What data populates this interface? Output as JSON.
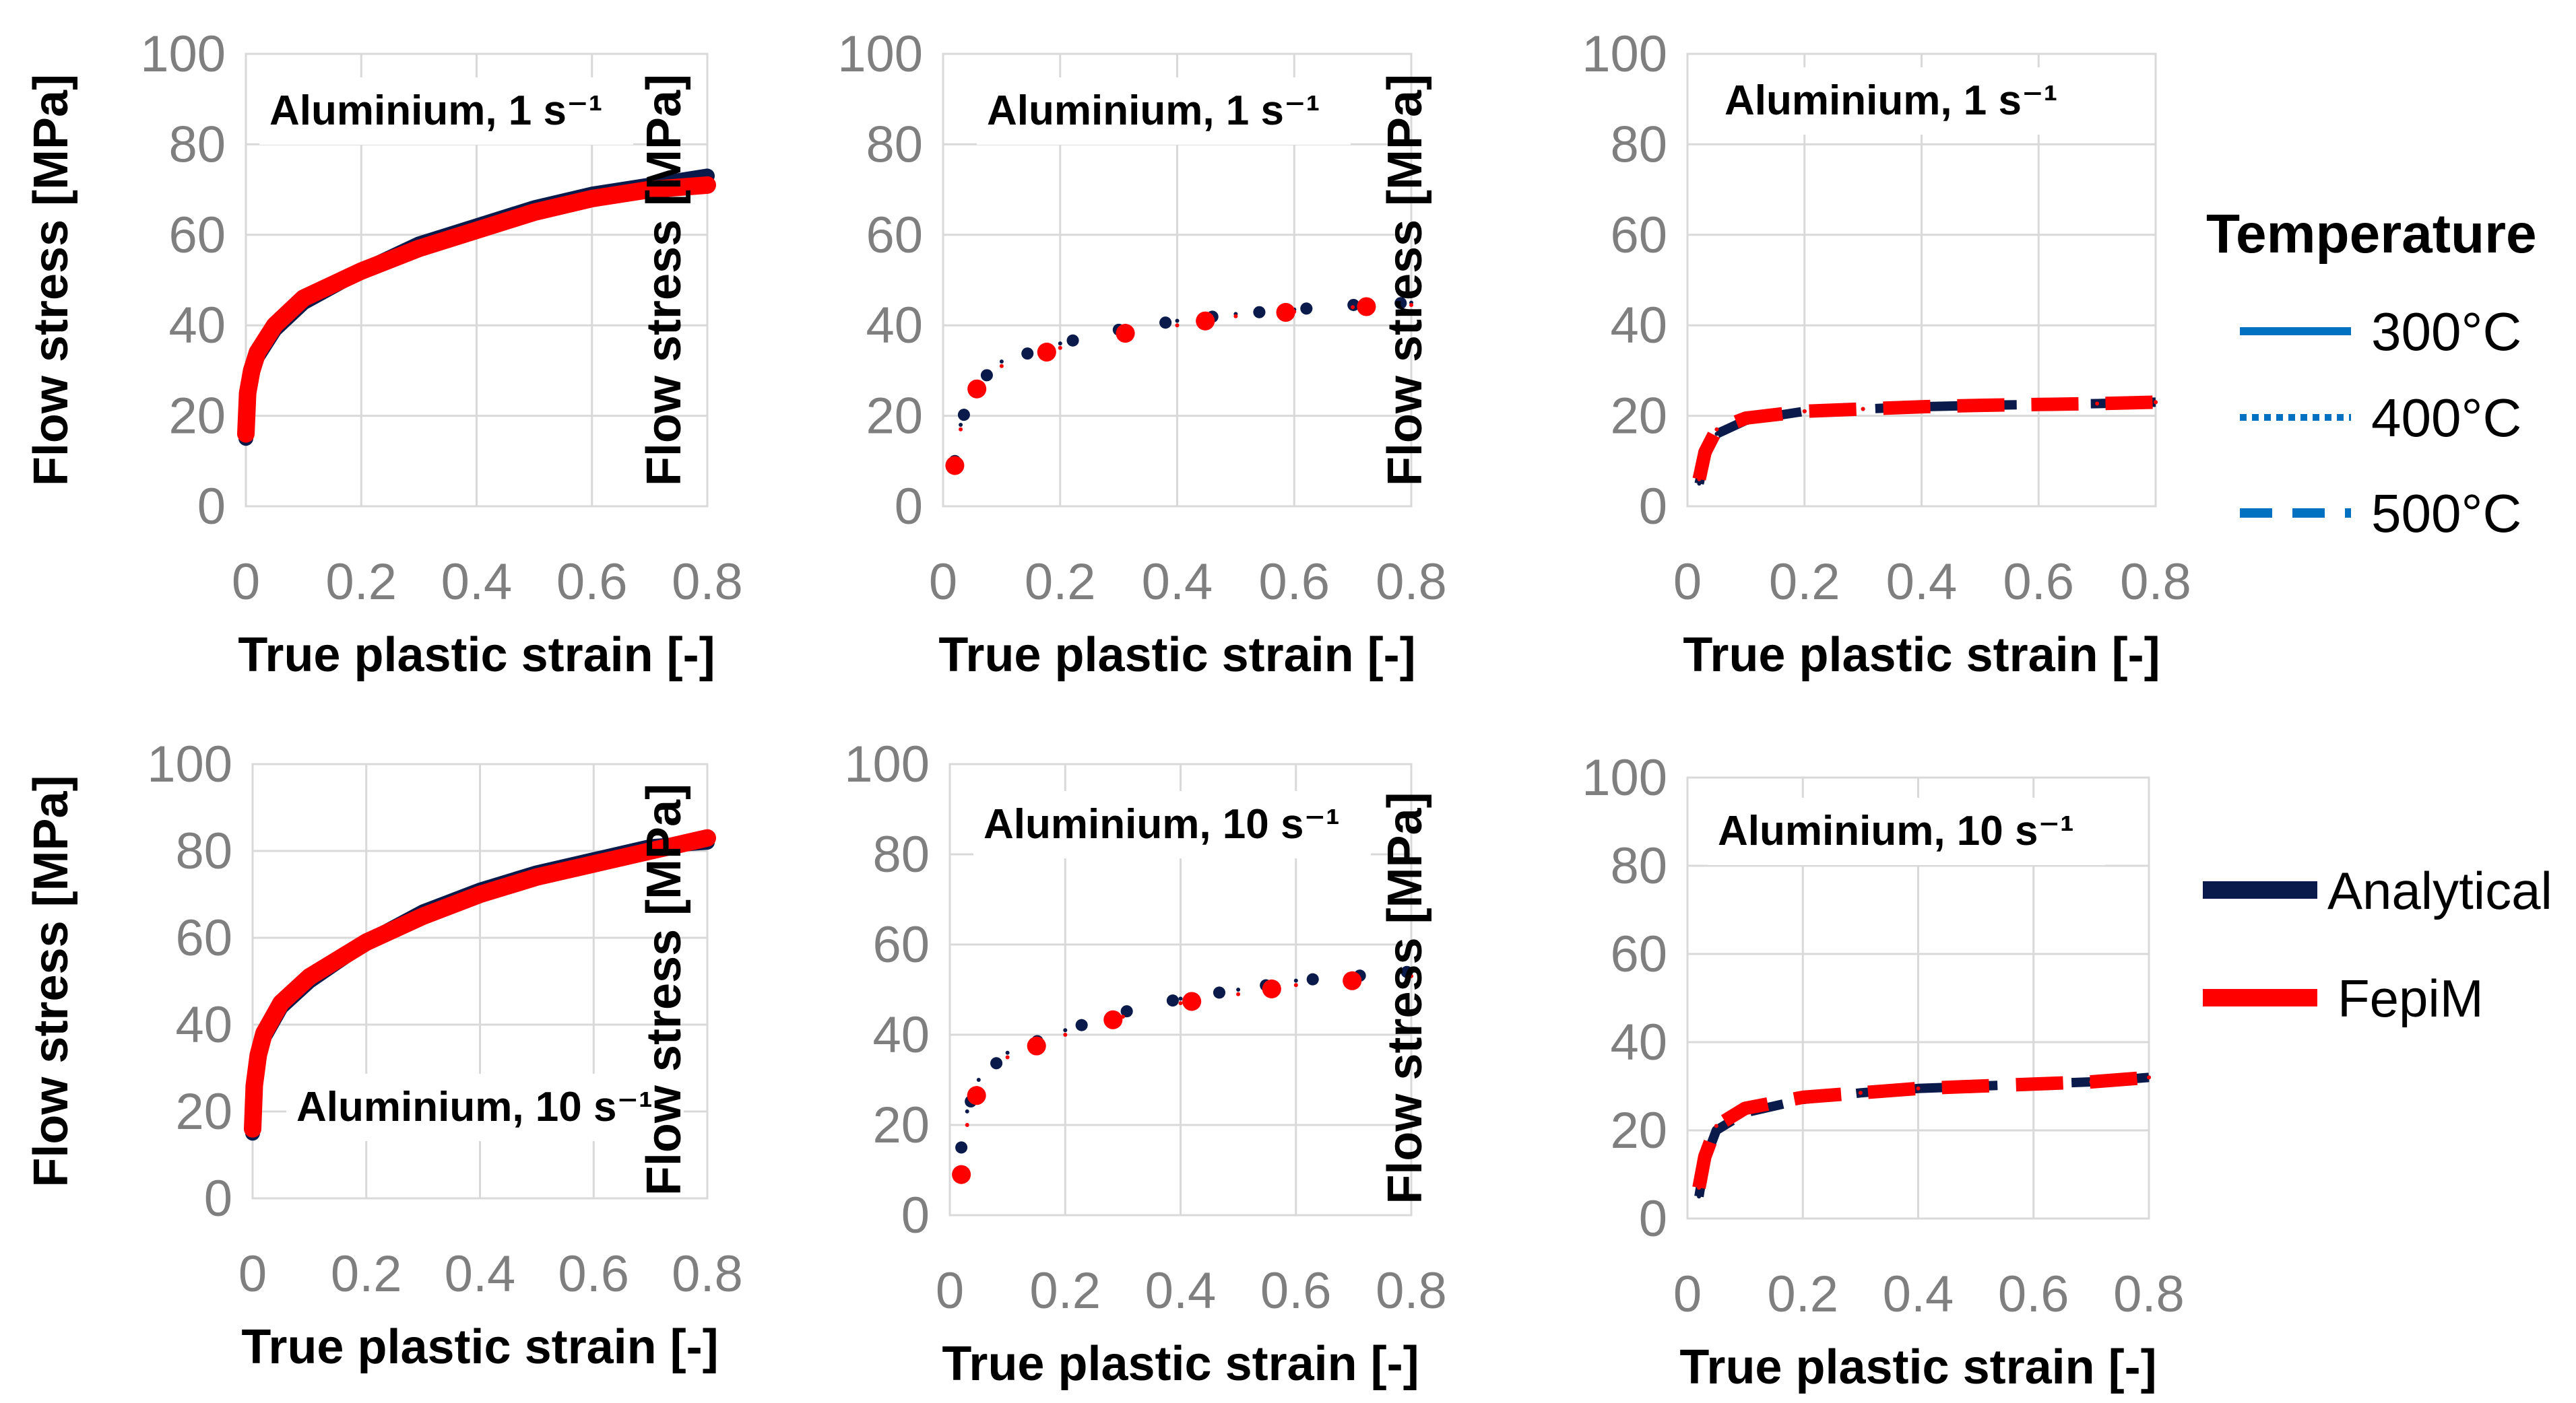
{
  "colors": {
    "analytical": "#0a1a4a",
    "fepim": "#ff0000",
    "temperature_legend": "#0070c0",
    "tick_text": "#7f7f7f",
    "grid": "#d9d9d9"
  },
  "legend": {
    "temperature_title": "Temperature",
    "temperature_items": [
      {
        "label": "300°C",
        "style": "solid"
      },
      {
        "label": "400°C",
        "style": "dotted"
      },
      {
        "label": "500°C",
        "style": "dashed"
      }
    ],
    "model_items": [
      {
        "label": "Analytical",
        "color": "#0a1a4a"
      },
      {
        "label": "FepiM",
        "color": "#ff0000"
      }
    ]
  },
  "chart_data": [
    {
      "type": "line",
      "title": "Aluminium, 1 s⁻¹",
      "temperature": "300°C",
      "line_style": "solid",
      "xlabel": "True plastic strain [-]",
      "ylabel": "Flow stress [MPa]",
      "xlim": [
        0,
        0.8
      ],
      "ylim": [
        0,
        100
      ],
      "xticks": [
        "0",
        "0.2",
        "0.4",
        "0.6",
        "0.8"
      ],
      "yticks": [
        "0",
        "20",
        "40",
        "60",
        "80",
        "100"
      ],
      "series": [
        {
          "name": "Analytical",
          "x": [
            0,
            0.003,
            0.01,
            0.02,
            0.05,
            0.1,
            0.2,
            0.3,
            0.4,
            0.5,
            0.6,
            0.7,
            0.8
          ],
          "y": [
            15,
            24,
            29,
            33,
            39,
            45,
            52,
            58,
            62,
            66,
            69,
            71,
            73
          ]
        },
        {
          "name": "FepiM",
          "x": [
            0,
            0.003,
            0.01,
            0.02,
            0.05,
            0.1,
            0.2,
            0.3,
            0.4,
            0.5,
            0.6,
            0.7,
            0.8
          ],
          "y": [
            16,
            25,
            30,
            34,
            40,
            46,
            52,
            57,
            61,
            65,
            68,
            70,
            71
          ]
        }
      ]
    },
    {
      "type": "line",
      "title": "Aluminium, 1 s⁻¹",
      "temperature": "400°C",
      "line_style": "dotted",
      "xlabel": "True plastic strain [-]",
      "ylabel": "Flow stress [MPa]",
      "xlim": [
        0,
        0.8
      ],
      "ylim": [
        0,
        100
      ],
      "xticks": [
        "0",
        "0.2",
        "0.4",
        "0.6",
        "0.8"
      ],
      "yticks": [
        "0",
        "20",
        "40",
        "60",
        "80",
        "100"
      ],
      "series": [
        {
          "name": "Analytical",
          "x": [
            0.02,
            0.03,
            0.05,
            0.1,
            0.2,
            0.3,
            0.4,
            0.5,
            0.6,
            0.7,
            0.8
          ],
          "y": [
            10,
            18,
            26,
            32,
            36,
            39,
            41,
            42.5,
            43.5,
            44.5,
            45
          ]
        },
        {
          "name": "FepiM",
          "x": [
            0.02,
            0.03,
            0.05,
            0.1,
            0.2,
            0.3,
            0.4,
            0.5,
            0.6,
            0.7,
            0.8
          ],
          "y": [
            9,
            17,
            25,
            31,
            35,
            38,
            40,
            42,
            43,
            44,
            44.5
          ]
        }
      ]
    },
    {
      "type": "line",
      "title": "Aluminium, 1 s⁻¹",
      "temperature": "500°C",
      "line_style": "dashed",
      "xlabel": "True plastic strain [-]",
      "ylabel": "Flow stress [MPa]",
      "xlim": [
        0,
        0.8
      ],
      "ylim": [
        0,
        100
      ],
      "xticks": [
        "0",
        "0.2",
        "0.4",
        "0.6",
        "0.8"
      ],
      "yticks": [
        "0",
        "20",
        "40",
        "60",
        "80",
        "100"
      ],
      "series": [
        {
          "name": "Analytical",
          "x": [
            0.02,
            0.03,
            0.05,
            0.1,
            0.2,
            0.3,
            0.4,
            0.5,
            0.6,
            0.7,
            0.8
          ],
          "y": [
            5,
            11,
            16,
            19,
            21,
            21.5,
            22,
            22.3,
            22.5,
            22.7,
            23
          ]
        },
        {
          "name": "FepiM",
          "x": [
            0.02,
            0.03,
            0.05,
            0.1,
            0.2,
            0.3,
            0.4,
            0.5,
            0.6,
            0.7,
            0.8
          ],
          "y": [
            6,
            12,
            17,
            19.5,
            21,
            21.5,
            22,
            22.3,
            22.5,
            22.7,
            23
          ]
        }
      ]
    },
    {
      "type": "line",
      "title": "Aluminium, 10 s⁻¹",
      "temperature": "300°C",
      "line_style": "solid",
      "xlabel": "True plastic strain [-]",
      "ylabel": "Flow stress [MPa]",
      "xlim": [
        0,
        0.8
      ],
      "ylim": [
        0,
        100
      ],
      "xticks": [
        "0",
        "0.2",
        "0.4",
        "0.6",
        "0.8"
      ],
      "yticks": [
        "0",
        "20",
        "40",
        "60",
        "80",
        "100"
      ],
      "series": [
        {
          "name": "Analytical",
          "x": [
            0,
            0.003,
            0.01,
            0.02,
            0.05,
            0.1,
            0.2,
            0.3,
            0.4,
            0.5,
            0.6,
            0.7,
            0.8
          ],
          "y": [
            15,
            25,
            32,
            37,
            44,
            50,
            59,
            66,
            71,
            75,
            78,
            81,
            82
          ]
        },
        {
          "name": "FepiM",
          "x": [
            0,
            0.003,
            0.01,
            0.02,
            0.05,
            0.1,
            0.2,
            0.3,
            0.4,
            0.5,
            0.6,
            0.7,
            0.8
          ],
          "y": [
            16,
            26,
            33,
            38,
            45,
            51,
            59,
            65,
            70,
            74,
            77,
            80,
            83
          ]
        }
      ]
    },
    {
      "type": "line",
      "title": "Aluminium, 10 s⁻¹",
      "temperature": "400°C",
      "line_style": "dotted",
      "xlabel": "True plastic strain [-]",
      "ylabel": "Flow stress [MPa]",
      "xlim": [
        0,
        0.8
      ],
      "ylim": [
        0,
        100
      ],
      "xticks": [
        "0",
        "0.2",
        "0.4",
        "0.6",
        "0.8"
      ],
      "yticks": [
        "0",
        "20",
        "40",
        "60",
        "80",
        "100"
      ],
      "series": [
        {
          "name": "Analytical",
          "x": [
            0.02,
            0.03,
            0.05,
            0.1,
            0.2,
            0.3,
            0.4,
            0.5,
            0.6,
            0.7,
            0.8
          ],
          "y": [
            15,
            23,
            30,
            36,
            41,
            45,
            48,
            50,
            52,
            53,
            54
          ]
        },
        {
          "name": "FepiM",
          "x": [
            0.02,
            0.03,
            0.05,
            0.1,
            0.2,
            0.3,
            0.4,
            0.5,
            0.6,
            0.7,
            0.8
          ],
          "y": [
            9,
            20,
            28,
            35,
            40,
            44,
            47,
            49,
            51,
            52,
            53
          ]
        }
      ]
    },
    {
      "type": "line",
      "title": "Aluminium, 10 s⁻¹",
      "temperature": "500°C",
      "line_style": "dashed",
      "xlabel": "True plastic strain [-]",
      "ylabel": "Flow stress [MPa]",
      "xlim": [
        0,
        0.8
      ],
      "ylim": [
        0,
        100
      ],
      "xticks": [
        "0",
        "0.2",
        "0.4",
        "0.6",
        "0.8"
      ],
      "yticks": [
        "0",
        "20",
        "40",
        "60",
        "80",
        "100"
      ],
      "series": [
        {
          "name": "Analytical",
          "x": [
            0.02,
            0.03,
            0.05,
            0.1,
            0.2,
            0.3,
            0.4,
            0.5,
            0.6,
            0.7,
            0.8
          ],
          "y": [
            5,
            13,
            20,
            24,
            27,
            28.5,
            29.5,
            30,
            30.5,
            31,
            32
          ]
        },
        {
          "name": "FepiM",
          "x": [
            0.02,
            0.03,
            0.05,
            0.1,
            0.2,
            0.3,
            0.4,
            0.5,
            0.6,
            0.7,
            0.8
          ],
          "y": [
            7,
            14,
            21,
            25,
            27.5,
            28.5,
            29.5,
            30,
            30.5,
            31,
            32
          ]
        }
      ]
    }
  ]
}
